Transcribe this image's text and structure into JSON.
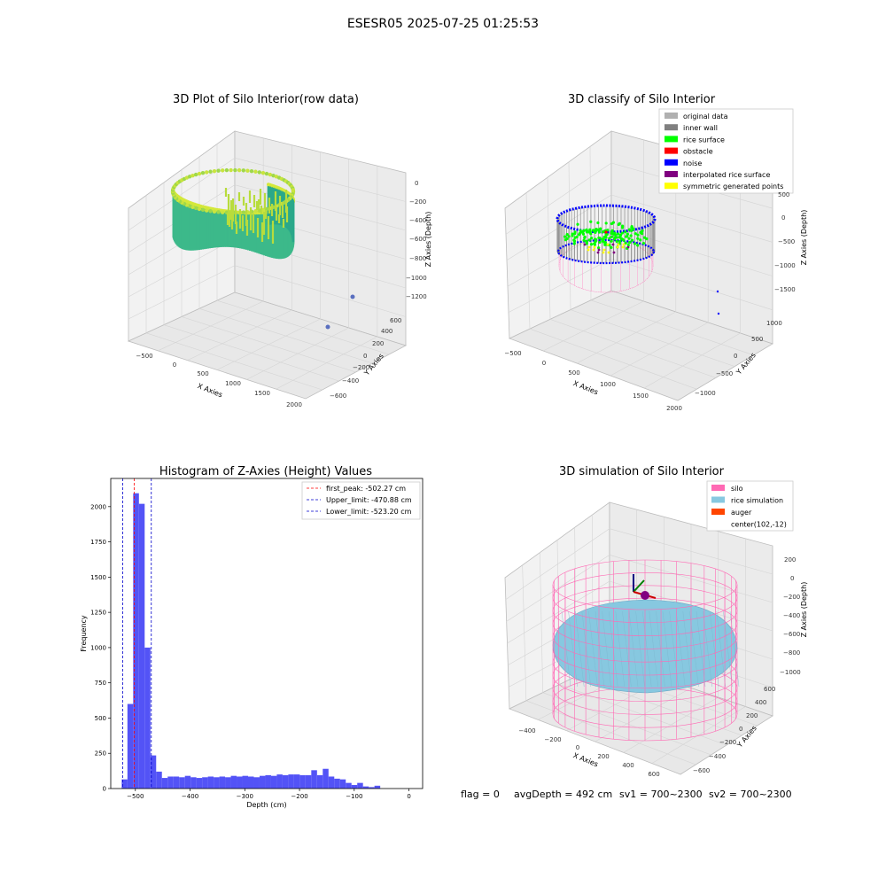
{
  "suptitle": "ESESR05 2025-07-25 01:25:53",
  "footer": {
    "flag": "flag = 0",
    "avg_depth": "avgDepth = 492 cm",
    "sv1": "sv1 = 700~2300",
    "sv2": "sv2 = 700~2300"
  },
  "colors": {
    "hist_bar": "#4a4af5",
    "first_peak": "#ff0000",
    "limits": "#0000cc",
    "silo": "#ff69b4",
    "rice": "#87c8e0",
    "auger": "#ff4500",
    "original": "#b0b0b0",
    "inner_wall": "#808080",
    "rice_surface": "#00ff00",
    "obstacle": "#ff0000",
    "noise": "#0000ff",
    "interpolated": "#800080",
    "symmetric": "#ffff00"
  },
  "chart_data": [
    {
      "type": "scatter",
      "title": "3D Plot of Silo Interior(row data)",
      "xlabel": "X Axies",
      "ylabel": "Y Axies",
      "zlabel": "Z Axies (Depth)",
      "x_ticks": [
        "−500",
        "0",
        "500",
        "1000",
        "1500",
        "2000"
      ],
      "y_ticks": [
        "−600",
        "−400",
        "−200",
        "0",
        "200",
        "400",
        "600"
      ],
      "z_ticks": [
        "0",
        "−200",
        "−400",
        "−600",
        "−800",
        "−1000",
        "−1200"
      ]
    },
    {
      "type": "scatter",
      "title": "3D classify of Silo Interior",
      "xlabel": "X Axies",
      "ylabel": "Y Axies",
      "zlabel": "Z Axies (Depth)",
      "x_ticks": [
        "−500",
        "0",
        "500",
        "1000",
        "1500",
        "2000"
      ],
      "y_ticks": [
        "−1000",
        "−500",
        "0",
        "500",
        "1000"
      ],
      "z_ticks": [
        "500",
        "0",
        "−500",
        "−1000",
        "−1500"
      ],
      "legend": [
        "original data",
        "inner wall",
        "rice surface",
        "obstacle",
        "noise",
        "interpolated rice surface",
        "symmetric generated points"
      ]
    },
    {
      "type": "bar",
      "title": "Histogram of Z-Axies (Height) Values",
      "xlabel": "Depth (cm)",
      "ylabel": "Frequency",
      "xlim": [
        -545,
        25
      ],
      "ylim": [
        0,
        2200
      ],
      "x_ticks": [
        -500,
        -400,
        -300,
        -200,
        -100,
        0
      ],
      "y_ticks": [
        0,
        250,
        500,
        750,
        1000,
        1250,
        1500,
        1750,
        2000
      ],
      "bin_width": 10.5,
      "bin_start": -525,
      "values": [
        65,
        600,
        2095,
        2020,
        1000,
        235,
        120,
        75,
        85,
        85,
        80,
        90,
        80,
        75,
        80,
        85,
        80,
        85,
        80,
        90,
        85,
        90,
        85,
        80,
        90,
        95,
        90,
        100,
        95,
        100,
        100,
        95,
        95,
        130,
        95,
        140,
        85,
        70,
        65,
        40,
        25,
        40,
        15,
        10,
        20
      ],
      "lines": [
        {
          "label": "first_peak: -502.27 cm",
          "x": -502.27
        },
        {
          "label": "Upper_limit: -470.88 cm",
          "x": -470.88
        },
        {
          "label": "Lower_limit: -523.20 cm",
          "x": -523.2
        }
      ]
    },
    {
      "type": "scatter",
      "title": "3D simulation of Silo Interior",
      "xlabel": "X Axies",
      "ylabel": "Y Axies",
      "zlabel": "Z Axies (Depth)",
      "x_ticks": [
        "−400",
        "−200",
        "0",
        "200",
        "400",
        "600"
      ],
      "y_ticks": [
        "−600",
        "−400",
        "−200",
        "0",
        "200",
        "400",
        "600"
      ],
      "z_ticks": [
        "200",
        "0",
        "−200",
        "−400",
        "−600",
        "−800",
        "−1000"
      ],
      "legend": [
        "silo",
        "rice simulation",
        "auger",
        "center(102,-12)"
      ]
    }
  ]
}
